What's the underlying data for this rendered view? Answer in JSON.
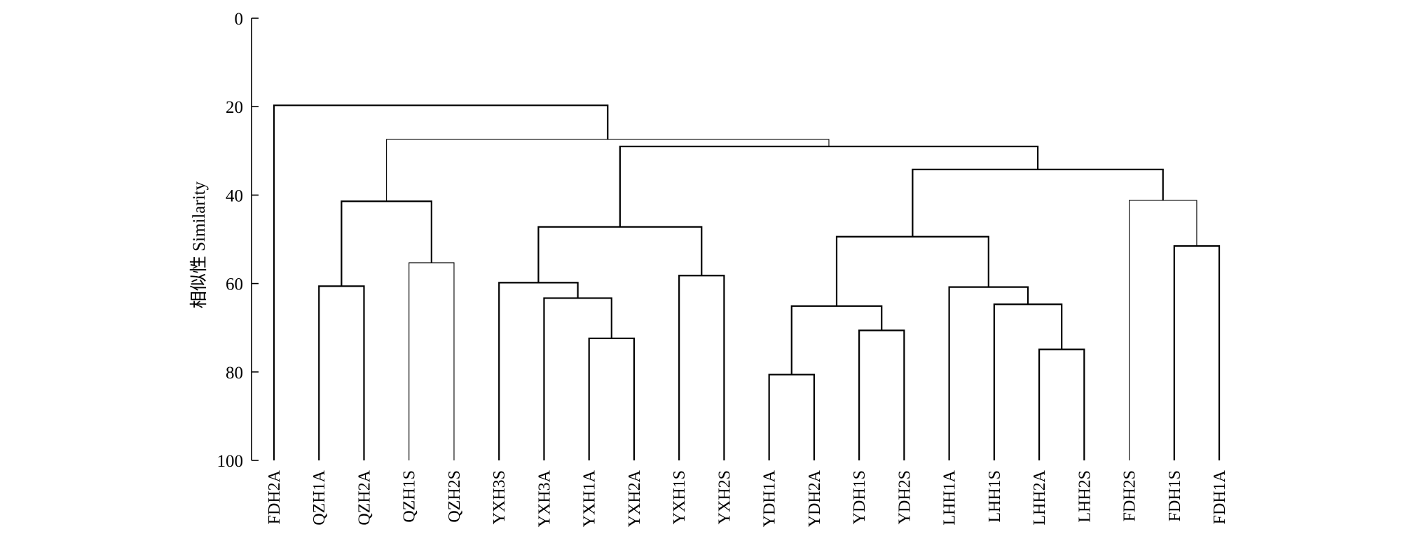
{
  "chart_data": {
    "type": "dendrogram",
    "ylabel": "相似性 Similarity",
    "ylim": [
      0,
      100
    ],
    "y_ticks": [
      0,
      20,
      40,
      60,
      80,
      100
    ],
    "y_tick_labels": [
      "0",
      "20",
      "40",
      "60",
      "80",
      "100"
    ],
    "leaves": [
      "FDH2A",
      "QZH1A",
      "QZH2A",
      "QZH1S",
      "QZH2S",
      "YXH3S",
      "YXH3A",
      "YXH1A",
      "YXH2A",
      "YXH1S",
      "YXH2S",
      "YDH1A",
      "YDH2A",
      "YDH1S",
      "YDH2S",
      "LHH1A",
      "LHH1S",
      "LHH2A",
      "LHH2S",
      "FDH2S",
      "FDH1S",
      "FDH1A"
    ],
    "merges": [
      {
        "children": [
          "FDH1S",
          "FDH1A"
        ],
        "similarity": 51.5
      },
      {
        "children": [
          "QZH1S",
          "QZH2S"
        ],
        "similarity": 55.3
      },
      {
        "children": [
          "YXH1S",
          "YXH2S"
        ],
        "similarity": 58.2
      },
      {
        "children": [
          "QZH1A",
          "QZH2A"
        ],
        "similarity": 60.6
      },
      {
        "children": [
          "YXH1A",
          "YXH2A"
        ],
        "similarity": 72.4
      },
      {
        "children": [
          "YXH3A",
          "YXH1A+YXH2A"
        ],
        "similarity": 63.3
      },
      {
        "children": [
          "YXH3S",
          "YXH3A+YXH1A+YXH2A"
        ],
        "similarity": 59.8
      },
      {
        "children": [
          "YDH1A",
          "YDH2A"
        ],
        "similarity": 80.6
      },
      {
        "children": [
          "YDH1S",
          "YDH2S"
        ],
        "similarity": 70.6
      },
      {
        "children": [
          "YDH1A+YDH2A",
          "YDH1S+YDH2S"
        ],
        "similarity": 65.1
      },
      {
        "children": [
          "LHH2A",
          "LHH2S"
        ],
        "similarity": 74.9
      },
      {
        "children": [
          "LHH1S",
          "LHH2A+LHH2S"
        ],
        "similarity": 64.7
      },
      {
        "children": [
          "LHH1A",
          "LHH1S+LHH2A+LHH2S"
        ],
        "similarity": 60.8
      },
      {
        "children": [
          "YDH group",
          "LHH group"
        ],
        "similarity": 49.4
      },
      {
        "children": [
          "FDH2S",
          "FDH1S+FDH1A"
        ],
        "similarity": 41.2
      },
      {
        "children": [
          "YDH+LHH group",
          "FDH2S+FDH1S+FDH1A"
        ],
        "similarity": 34.2
      },
      {
        "children": [
          "QZH1S+QZH2S",
          "QZH1A+QZH2A"
        ],
        "similarity": 41.4
      },
      {
        "children": [
          "YXH3S group",
          "YXH1S+YXH2S"
        ],
        "similarity": 47.2
      },
      {
        "children": [
          "YXH group",
          "YDH+LHH+FDH group"
        ],
        "similarity": 29.0
      },
      {
        "children": [
          "QZH group",
          "YXH+YDH+LHH+FDH group"
        ],
        "similarity": 27.4
      },
      {
        "children": [
          "FDH2A",
          "all others"
        ],
        "similarity": 19.7
      }
    ],
    "grid": false
  }
}
